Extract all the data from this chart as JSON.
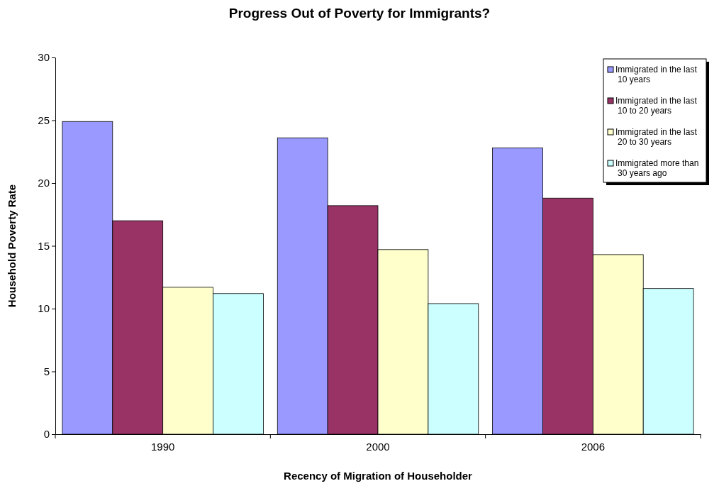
{
  "chart_data": {
    "type": "bar",
    "title": "Progress Out of Poverty for Immigrants?",
    "xlabel": "Recency of Migration of Householder",
    "ylabel": "Household Poverty Rate",
    "categories": [
      "1990",
      "2000",
      "2006"
    ],
    "series": [
      {
        "name": "Immigrated in the last 10 years",
        "color": "#9999ff",
        "values": [
          24.9,
          23.6,
          22.8
        ]
      },
      {
        "name": "Immigrated in the last 10 to 20 years",
        "color": "#993366",
        "values": [
          17.0,
          18.2,
          18.8
        ]
      },
      {
        "name": "Immigrated in the last 20 to 30 years",
        "color": "#ffffcc",
        "values": [
          11.7,
          14.7,
          14.3
        ]
      },
      {
        "name": "Immigrated more than 30 years ago",
        "color": "#ccffff",
        "values": [
          11.2,
          10.4,
          11.6
        ]
      }
    ],
    "ylim": [
      0,
      30
    ],
    "yticks": [
      0,
      5,
      10,
      15,
      20,
      25,
      30
    ],
    "grid": false,
    "legend": "top right"
  }
}
